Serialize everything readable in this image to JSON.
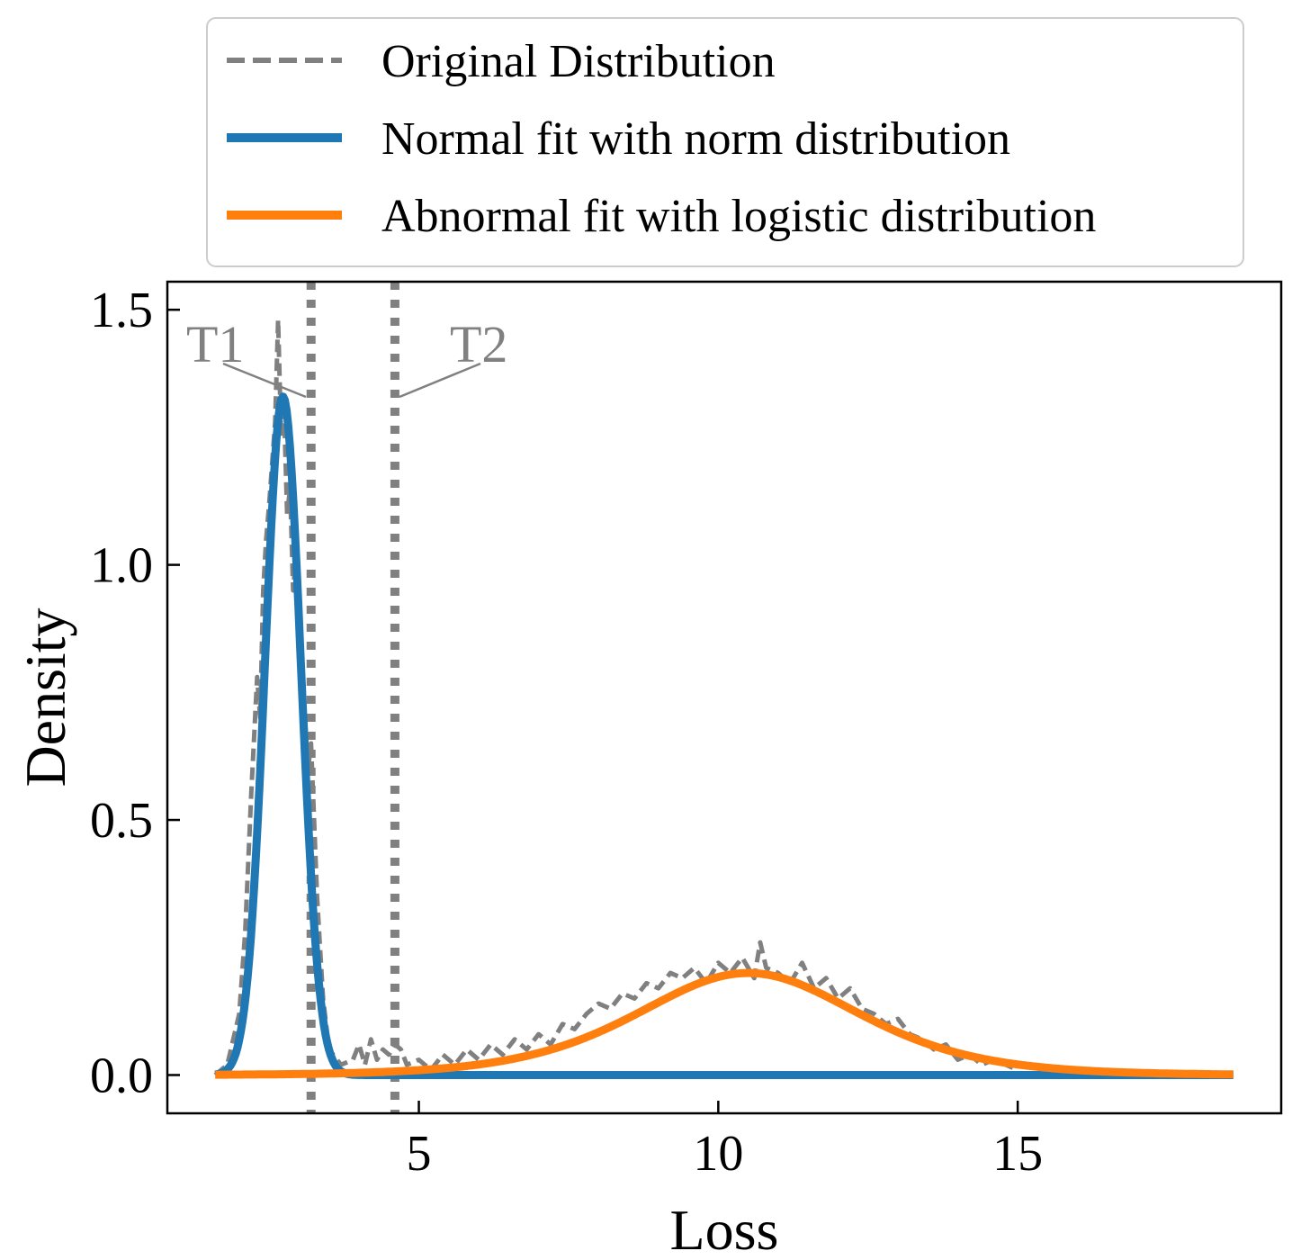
{
  "chart_data": {
    "type": "line",
    "xlabel": "Loss",
    "ylabel": "Density",
    "xlim": [
      0.8,
      19.4
    ],
    "ylim": [
      -0.075,
      1.555
    ],
    "xticks": [
      5,
      10,
      15
    ],
    "xtick_labels": [
      "5",
      "10",
      "15"
    ],
    "yticks": [
      0.0,
      0.5,
      1.0,
      1.5
    ],
    "ytick_labels": [
      "0.0",
      "0.5",
      "1.0",
      "1.5"
    ],
    "grid": false,
    "legend_position": "top, above plot",
    "series": [
      {
        "name": "Original Distribution",
        "style": "dashed",
        "color": "#808080",
        "x": [
          1.6,
          1.8,
          2.0,
          2.1,
          2.2,
          2.3,
          2.35,
          2.4,
          2.45,
          2.5,
          2.55,
          2.6,
          2.65,
          2.7,
          2.75,
          2.8,
          2.85,
          2.9,
          2.95,
          3.0,
          3.05,
          3.1,
          3.15,
          3.2,
          3.25,
          3.3,
          3.35,
          3.4,
          3.5,
          3.7,
          3.9,
          4.0,
          4.1,
          4.2,
          4.3,
          4.4,
          4.5,
          4.6,
          4.7,
          4.8,
          5.0,
          5.2,
          5.4,
          5.6,
          5.8,
          6.0,
          6.2,
          6.4,
          6.6,
          6.8,
          7.0,
          7.2,
          7.4,
          7.6,
          7.8,
          8.0,
          8.2,
          8.4,
          8.6,
          8.8,
          9.0,
          9.2,
          9.4,
          9.6,
          9.8,
          10.0,
          10.2,
          10.4,
          10.6,
          10.7,
          10.8,
          11.0,
          11.2,
          11.4,
          11.6,
          11.8,
          12.0,
          12.2,
          12.4,
          12.6,
          12.8,
          13.0,
          13.2,
          13.4,
          13.6,
          13.8,
          14.0,
          14.2,
          14.4,
          14.6,
          14.8,
          15.0
        ],
        "values": [
          0.0,
          0.02,
          0.12,
          0.28,
          0.55,
          0.78,
          0.7,
          0.95,
          1.05,
          1.12,
          1.2,
          1.28,
          1.48,
          1.25,
          1.3,
          1.1,
          1.15,
          0.95,
          1.02,
          0.85,
          0.75,
          0.7,
          0.6,
          0.65,
          0.5,
          0.35,
          0.25,
          0.15,
          0.05,
          0.02,
          0.03,
          0.06,
          0.02,
          0.07,
          0.03,
          0.05,
          0.04,
          0.06,
          0.05,
          0.02,
          0.03,
          0.01,
          0.04,
          0.02,
          0.05,
          0.03,
          0.06,
          0.04,
          0.07,
          0.05,
          0.08,
          0.06,
          0.1,
          0.09,
          0.12,
          0.14,
          0.13,
          0.16,
          0.15,
          0.18,
          0.17,
          0.2,
          0.19,
          0.21,
          0.18,
          0.22,
          0.2,
          0.23,
          0.19,
          0.26,
          0.21,
          0.2,
          0.18,
          0.22,
          0.17,
          0.19,
          0.15,
          0.17,
          0.13,
          0.12,
          0.1,
          0.11,
          0.08,
          0.07,
          0.05,
          0.06,
          0.03,
          0.04,
          0.02,
          0.03,
          0.02,
          0.01
        ]
      },
      {
        "name": "Normal fit with norm distribution",
        "style": "solid",
        "color": "#1f77b4",
        "generator": "normal",
        "mu": 2.73,
        "sigma": 0.3,
        "x_range": [
          1.6,
          18.6
        ]
      },
      {
        "name": "Abnormal fit with logistic distribution",
        "style": "solid",
        "color": "#ff7f0e",
        "generator": "logistic",
        "mu": 10.5,
        "s": 1.25,
        "x_range": [
          1.6,
          18.6
        ]
      }
    ],
    "vlines": [
      {
        "name": "T1",
        "x": 3.2,
        "style": "dotted",
        "color": "#808080"
      },
      {
        "name": "T2",
        "x": 4.6,
        "style": "dotted",
        "color": "#808080"
      }
    ],
    "annotations": [
      {
        "text": "T1",
        "target_x": 3.2,
        "target_y": 1.33
      },
      {
        "text": "T2",
        "target_x": 4.6,
        "target_y": 1.33
      }
    ]
  }
}
